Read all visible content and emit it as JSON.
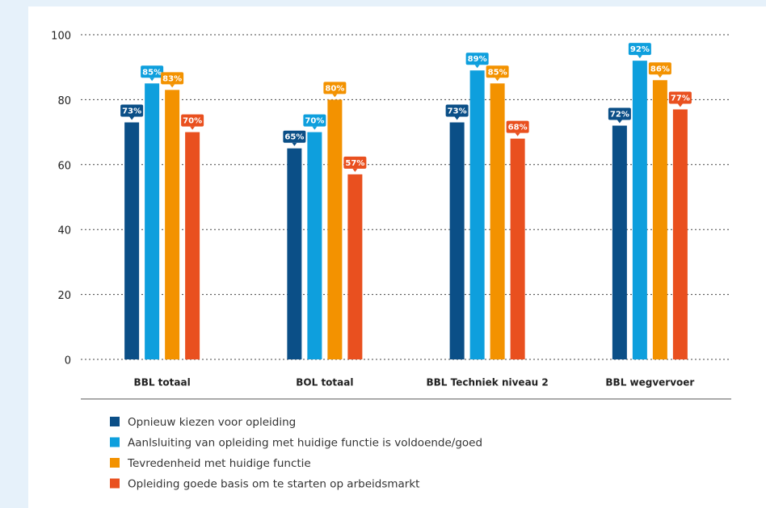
{
  "chart_data": {
    "type": "bar",
    "categories": [
      "BBL totaal",
      "BOL totaal",
      "BBL Techniek niveau 2",
      "BBL wegvervoer"
    ],
    "series": [
      {
        "name": "Opnieuw kiezen voor opleiding",
        "color": "#0b4f87",
        "values": [
          73,
          65,
          73,
          72
        ],
        "value_labels": [
          "73%",
          "65%",
          "73%",
          "72%"
        ]
      },
      {
        "name": "Aanlsluiting van opleiding met huidige functie is voldoende/goed",
        "color": "#0e9fdd",
        "values": [
          85,
          70,
          89,
          92
        ],
        "value_labels": [
          "85%",
          "70%",
          "89%",
          "92%"
        ]
      },
      {
        "name": "Tevredenheid met huidige functie",
        "color": "#f39200",
        "values": [
          83,
          80,
          85,
          86
        ],
        "value_labels": [
          "83%",
          "80%",
          "85%",
          "86%"
        ]
      },
      {
        "name": "Opleiding goede basis om te starten op arbeidsmarkt",
        "color": "#e9501f",
        "values": [
          70,
          57,
          68,
          77
        ],
        "value_labels": [
          "70%",
          "57%",
          "68%",
          "77%"
        ]
      }
    ],
    "ylim": [
      0,
      100
    ],
    "yticks": [
      0,
      20,
      40,
      60,
      80,
      100
    ],
    "grid": true,
    "legend": "bottom"
  }
}
